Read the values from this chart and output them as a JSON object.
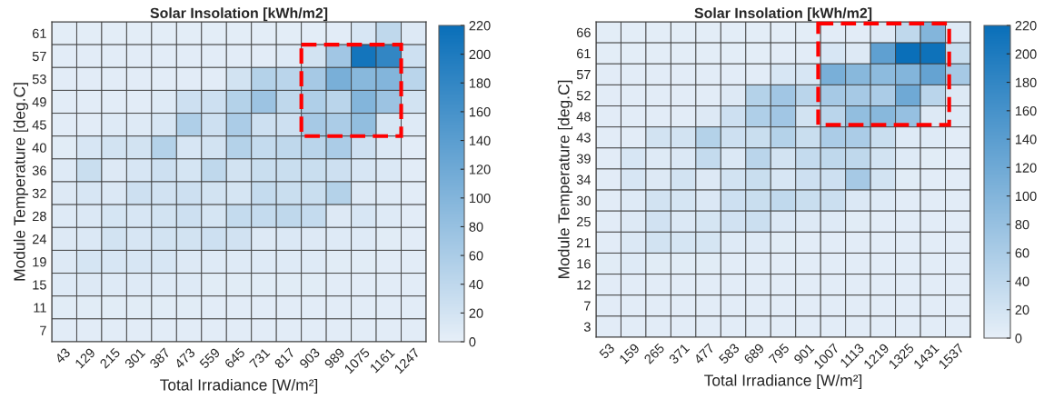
{
  "chart_data": [
    {
      "type": "heatmap",
      "title": "Solar Insolation [kWh/m2]",
      "xlabel": "Total Irradiance [W/m²]",
      "ylabel": "Module Temperature [deg.C]",
      "categories": [
        "43",
        "129",
        "215",
        "301",
        "387",
        "473",
        "559",
        "645",
        "731",
        "817",
        "903",
        "989",
        "1075",
        "1161",
        "1247"
      ],
      "y_categories": [
        "61",
        "57",
        "53",
        "49",
        "45",
        "40",
        "36",
        "32",
        "28",
        "24",
        "19",
        "15",
        "11",
        "7"
      ],
      "cells": [
        [
          3,
          3,
          3,
          3,
          3,
          3,
          3,
          3,
          3,
          3,
          3,
          5,
          15,
          40,
          10
        ],
        [
          5,
          5,
          5,
          5,
          5,
          5,
          5,
          5,
          5,
          8,
          20,
          70,
          210,
          180,
          25
        ],
        [
          5,
          5,
          5,
          5,
          5,
          5,
          5,
          20,
          50,
          45,
          65,
          110,
          95,
          100,
          45
        ],
        [
          5,
          5,
          5,
          5,
          8,
          25,
          25,
          50,
          75,
          40,
          55,
          45,
          100,
          75,
          20
        ],
        [
          5,
          5,
          8,
          8,
          15,
          55,
          25,
          60,
          25,
          25,
          65,
          60,
          85,
          15,
          8
        ],
        [
          6,
          15,
          20,
          20,
          50,
          15,
          20,
          50,
          35,
          40,
          45,
          60,
          25,
          12,
          5
        ],
        [
          8,
          30,
          10,
          15,
          25,
          18,
          40,
          20,
          30,
          30,
          30,
          25,
          15,
          12,
          5
        ],
        [
          10,
          15,
          12,
          25,
          22,
          25,
          20,
          18,
          35,
          30,
          30,
          50,
          10,
          8,
          5
        ],
        [
          8,
          12,
          18,
          15,
          20,
          25,
          18,
          35,
          35,
          40,
          35,
          10,
          15,
          8,
          5
        ],
        [
          10,
          12,
          20,
          15,
          20,
          20,
          25,
          22,
          10,
          12,
          10,
          8,
          8,
          6,
          5
        ],
        [
          10,
          18,
          15,
          15,
          15,
          10,
          8,
          8,
          8,
          8,
          8,
          6,
          6,
          5,
          5
        ],
        [
          8,
          10,
          8,
          8,
          8,
          8,
          6,
          6,
          6,
          6,
          6,
          5,
          5,
          5,
          5
        ],
        [
          6,
          6,
          6,
          6,
          6,
          6,
          5,
          5,
          5,
          5,
          5,
          5,
          5,
          5,
          5
        ],
        [
          5,
          5,
          5,
          5,
          5,
          5,
          5,
          5,
          5,
          5,
          5,
          5,
          5,
          5,
          5
        ]
      ],
      "clim": [
        0,
        220
      ],
      "cticks": [
        0,
        20,
        40,
        60,
        80,
        100,
        120,
        140,
        160,
        180,
        200,
        220
      ]
    },
    {
      "type": "heatmap",
      "title": "Solar Insolation [kWh/m2]",
      "xlabel": "Total Irradiance [W/m²]",
      "ylabel": "Module Temperature [deg.C]",
      "categories": [
        "53",
        "159",
        "265",
        "371",
        "477",
        "583",
        "689",
        "795",
        "901",
        "1007",
        "1113",
        "1219",
        "1325",
        "1431",
        "1537"
      ],
      "y_categories": [
        "66",
        "61",
        "57",
        "52",
        "48",
        "43",
        "39",
        "34",
        "30",
        "25",
        "21",
        "16",
        "12",
        "7",
        "3"
      ],
      "cells": [
        [
          3,
          3,
          3,
          3,
          3,
          3,
          3,
          3,
          3,
          5,
          5,
          10,
          40,
          100,
          8
        ],
        [
          3,
          3,
          3,
          3,
          3,
          3,
          3,
          5,
          5,
          15,
          10,
          135,
          220,
          215,
          30
        ],
        [
          5,
          5,
          5,
          5,
          5,
          5,
          5,
          15,
          15,
          110,
          95,
          90,
          100,
          130,
          65
        ],
        [
          5,
          5,
          5,
          5,
          5,
          10,
          50,
          70,
          45,
          65,
          65,
          60,
          120,
          45,
          10
        ],
        [
          5,
          5,
          5,
          5,
          10,
          25,
          55,
          70,
          20,
          45,
          85,
          95,
          80,
          10,
          8
        ],
        [
          5,
          5,
          20,
          20,
          50,
          25,
          30,
          50,
          30,
          60,
          60,
          30,
          8,
          8,
          5
        ],
        [
          5,
          15,
          8,
          12,
          35,
          12,
          45,
          20,
          35,
          40,
          40,
          20,
          8,
          6,
          5
        ],
        [
          5,
          15,
          10,
          20,
          10,
          20,
          30,
          15,
          25,
          25,
          65,
          20,
          6,
          5,
          5
        ],
        [
          5,
          8,
          20,
          18,
          12,
          25,
          30,
          38,
          30,
          28,
          12,
          8,
          5,
          5,
          5
        ],
        [
          5,
          10,
          22,
          12,
          18,
          22,
          28,
          12,
          10,
          8,
          6,
          5,
          5,
          5,
          5
        ],
        [
          5,
          12,
          20,
          18,
          18,
          8,
          8,
          6,
          5,
          5,
          5,
          5,
          5,
          5,
          5
        ],
        [
          6,
          8,
          6,
          6,
          6,
          5,
          5,
          5,
          5,
          5,
          5,
          5,
          5,
          5,
          5
        ],
        [
          5,
          5,
          5,
          5,
          5,
          5,
          5,
          5,
          5,
          5,
          5,
          5,
          5,
          5,
          5
        ],
        [
          5,
          5,
          5,
          5,
          5,
          5,
          5,
          5,
          5,
          5,
          5,
          5,
          5,
          5,
          5
        ],
        [
          5,
          5,
          5,
          5,
          5,
          5,
          5,
          5,
          5,
          5,
          5,
          5,
          5,
          5,
          5
        ]
      ],
      "clim": [
        0,
        220
      ],
      "cticks": [
        0,
        20,
        40,
        60,
        80,
        100,
        120,
        140,
        160,
        180,
        200,
        220
      ]
    }
  ]
}
